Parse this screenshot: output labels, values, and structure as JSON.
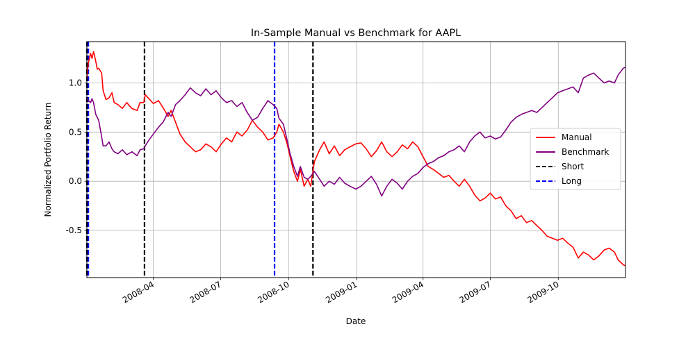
{
  "chart_data": {
    "type": "line",
    "title": "In-Sample Manual vs Benchmark for AAPL",
    "xlabel": "Date",
    "ylabel": "Normalized Portfolio Return",
    "xlim": [
      "2008-01-02",
      "2009-12-31"
    ],
    "ylim": [
      -0.98,
      1.42
    ],
    "yticks": [
      -0.5,
      0.0,
      0.5,
      1.0
    ],
    "xticks": [
      "2008-04",
      "2008-07",
      "2008-10",
      "2009-01",
      "2009-04",
      "2009-07",
      "2009-10"
    ],
    "grid": true,
    "legend_position": "center-right",
    "series": [
      {
        "name": "Manual",
        "color": "#ff0000",
        "points": [
          [
            "2008-01-02",
            1.05
          ],
          [
            "2008-01-04",
            1.2
          ],
          [
            "2008-01-07",
            1.3
          ],
          [
            "2008-01-09",
            1.25
          ],
          [
            "2008-01-11",
            1.32
          ],
          [
            "2008-01-14",
            1.22
          ],
          [
            "2008-01-16",
            1.14
          ],
          [
            "2008-01-18",
            1.15
          ],
          [
            "2008-01-22",
            1.1
          ],
          [
            "2008-01-24",
            0.92
          ],
          [
            "2008-01-28",
            0.83
          ],
          [
            "2008-02-01",
            0.85
          ],
          [
            "2008-02-05",
            0.9
          ],
          [
            "2008-02-08",
            0.8
          ],
          [
            "2008-02-13",
            0.78
          ],
          [
            "2008-02-19",
            0.74
          ],
          [
            "2008-02-25",
            0.8
          ],
          [
            "2008-03-03",
            0.74
          ],
          [
            "2008-03-10",
            0.72
          ],
          [
            "2008-03-14",
            0.8
          ],
          [
            "2008-03-19",
            0.8
          ],
          [
            "2008-03-21",
            0.88
          ],
          [
            "2008-03-26",
            0.84
          ],
          [
            "2008-04-01",
            0.79
          ],
          [
            "2008-04-08",
            0.82
          ],
          [
            "2008-04-14",
            0.75
          ],
          [
            "2008-04-21",
            0.66
          ],
          [
            "2008-04-25",
            0.72
          ],
          [
            "2008-05-01",
            0.6
          ],
          [
            "2008-05-07",
            0.48
          ],
          [
            "2008-05-14",
            0.4
          ],
          [
            "2008-05-21",
            0.35
          ],
          [
            "2008-05-28",
            0.3
          ],
          [
            "2008-06-04",
            0.32
          ],
          [
            "2008-06-11",
            0.38
          ],
          [
            "2008-06-18",
            0.35
          ],
          [
            "2008-06-25",
            0.3
          ],
          [
            "2008-07-02",
            0.38
          ],
          [
            "2008-07-09",
            0.44
          ],
          [
            "2008-07-16",
            0.4
          ],
          [
            "2008-07-23",
            0.5
          ],
          [
            "2008-07-30",
            0.46
          ],
          [
            "2008-08-06",
            0.52
          ],
          [
            "2008-08-13",
            0.62
          ],
          [
            "2008-08-20",
            0.55
          ],
          [
            "2008-08-27",
            0.5
          ],
          [
            "2008-09-03",
            0.42
          ],
          [
            "2008-09-10",
            0.44
          ],
          [
            "2008-09-15",
            0.5
          ],
          [
            "2008-09-18",
            0.58
          ],
          [
            "2008-09-24",
            0.5
          ],
          [
            "2008-09-29",
            0.38
          ],
          [
            "2008-10-03",
            0.25
          ],
          [
            "2008-10-08",
            0.1
          ],
          [
            "2008-10-13",
            0.0
          ],
          [
            "2008-10-17",
            0.12
          ],
          [
            "2008-10-22",
            -0.05
          ],
          [
            "2008-10-27",
            0.02
          ],
          [
            "2008-10-31",
            -0.05
          ],
          [
            "2008-11-05",
            0.2
          ],
          [
            "2008-11-12",
            0.32
          ],
          [
            "2008-11-18",
            0.4
          ],
          [
            "2008-11-25",
            0.28
          ],
          [
            "2008-12-02",
            0.36
          ],
          [
            "2008-12-09",
            0.26
          ],
          [
            "2008-12-16",
            0.32
          ],
          [
            "2008-12-23",
            0.35
          ],
          [
            "2008-12-31",
            0.38
          ],
          [
            "2009-01-07",
            0.39
          ],
          [
            "2009-01-14",
            0.33
          ],
          [
            "2009-01-21",
            0.25
          ],
          [
            "2009-01-28",
            0.31
          ],
          [
            "2009-02-04",
            0.4
          ],
          [
            "2009-02-11",
            0.3
          ],
          [
            "2009-02-18",
            0.25
          ],
          [
            "2009-02-25",
            0.3
          ],
          [
            "2009-03-04",
            0.37
          ],
          [
            "2009-03-11",
            0.33
          ],
          [
            "2009-03-18",
            0.4
          ],
          [
            "2009-03-25",
            0.35
          ],
          [
            "2009-04-01",
            0.25
          ],
          [
            "2009-04-08",
            0.15
          ],
          [
            "2009-04-15",
            0.12
          ],
          [
            "2009-04-22",
            0.08
          ],
          [
            "2009-04-29",
            0.04
          ],
          [
            "2009-05-06",
            0.06
          ],
          [
            "2009-05-13",
            0.0
          ],
          [
            "2009-05-20",
            -0.05
          ],
          [
            "2009-05-27",
            0.02
          ],
          [
            "2009-06-03",
            -0.05
          ],
          [
            "2009-06-10",
            -0.14
          ],
          [
            "2009-06-17",
            -0.2
          ],
          [
            "2009-06-24",
            -0.17
          ],
          [
            "2009-07-01",
            -0.12
          ],
          [
            "2009-07-08",
            -0.18
          ],
          [
            "2009-07-15",
            -0.16
          ],
          [
            "2009-07-22",
            -0.25
          ],
          [
            "2009-07-29",
            -0.3
          ],
          [
            "2009-08-05",
            -0.38
          ],
          [
            "2009-08-12",
            -0.35
          ],
          [
            "2009-08-19",
            -0.42
          ],
          [
            "2009-08-26",
            -0.4
          ],
          [
            "2009-09-02",
            -0.45
          ],
          [
            "2009-09-09",
            -0.5
          ],
          [
            "2009-09-16",
            -0.56
          ],
          [
            "2009-09-23",
            -0.58
          ],
          [
            "2009-09-30",
            -0.6
          ],
          [
            "2009-10-07",
            -0.58
          ],
          [
            "2009-10-14",
            -0.63
          ],
          [
            "2009-10-21",
            -0.67
          ],
          [
            "2009-10-28",
            -0.78
          ],
          [
            "2009-11-04",
            -0.72
          ],
          [
            "2009-11-11",
            -0.75
          ],
          [
            "2009-11-18",
            -0.8
          ],
          [
            "2009-11-25",
            -0.76
          ],
          [
            "2009-12-02",
            -0.7
          ],
          [
            "2009-12-09",
            -0.68
          ],
          [
            "2009-12-16",
            -0.72
          ],
          [
            "2009-12-21",
            -0.8
          ],
          [
            "2009-12-28",
            -0.85
          ],
          [
            "2009-12-31",
            -0.86
          ]
        ]
      },
      {
        "name": "Benchmark",
        "color": "#800080",
        "points": [
          [
            "2008-01-02",
            0.85
          ],
          [
            "2008-01-04",
            0.82
          ],
          [
            "2008-01-07",
            0.8
          ],
          [
            "2008-01-09",
            0.84
          ],
          [
            "2008-01-11",
            0.8
          ],
          [
            "2008-01-14",
            0.68
          ],
          [
            "2008-01-16",
            0.65
          ],
          [
            "2008-01-18",
            0.62
          ],
          [
            "2008-01-22",
            0.45
          ],
          [
            "2008-01-24",
            0.36
          ],
          [
            "2008-01-28",
            0.36
          ],
          [
            "2008-02-01",
            0.4
          ],
          [
            "2008-02-05",
            0.33
          ],
          [
            "2008-02-08",
            0.3
          ],
          [
            "2008-02-13",
            0.28
          ],
          [
            "2008-02-19",
            0.32
          ],
          [
            "2008-02-25",
            0.27
          ],
          [
            "2008-03-03",
            0.3
          ],
          [
            "2008-03-10",
            0.26
          ],
          [
            "2008-03-14",
            0.32
          ],
          [
            "2008-03-19",
            0.33
          ],
          [
            "2008-03-21",
            0.36
          ],
          [
            "2008-03-26",
            0.42
          ],
          [
            "2008-04-01",
            0.48
          ],
          [
            "2008-04-08",
            0.55
          ],
          [
            "2008-04-14",
            0.6
          ],
          [
            "2008-04-21",
            0.7
          ],
          [
            "2008-04-25",
            0.66
          ],
          [
            "2008-05-01",
            0.78
          ],
          [
            "2008-05-07",
            0.82
          ],
          [
            "2008-05-14",
            0.88
          ],
          [
            "2008-05-21",
            0.95
          ],
          [
            "2008-05-28",
            0.9
          ],
          [
            "2008-06-04",
            0.87
          ],
          [
            "2008-06-11",
            0.94
          ],
          [
            "2008-06-18",
            0.88
          ],
          [
            "2008-06-25",
            0.92
          ],
          [
            "2008-07-02",
            0.85
          ],
          [
            "2008-07-09",
            0.8
          ],
          [
            "2008-07-16",
            0.82
          ],
          [
            "2008-07-23",
            0.76
          ],
          [
            "2008-07-30",
            0.8
          ],
          [
            "2008-08-06",
            0.7
          ],
          [
            "2008-08-13",
            0.62
          ],
          [
            "2008-08-20",
            0.65
          ],
          [
            "2008-08-27",
            0.74
          ],
          [
            "2008-09-03",
            0.82
          ],
          [
            "2008-09-10",
            0.78
          ],
          [
            "2008-09-15",
            0.74
          ],
          [
            "2008-09-18",
            0.64
          ],
          [
            "2008-09-24",
            0.58
          ],
          [
            "2008-09-29",
            0.42
          ],
          [
            "2008-10-03",
            0.28
          ],
          [
            "2008-10-08",
            0.15
          ],
          [
            "2008-10-13",
            0.05
          ],
          [
            "2008-10-17",
            0.15
          ],
          [
            "2008-10-22",
            0.04
          ],
          [
            "2008-10-27",
            0.02
          ],
          [
            "2008-10-31",
            0.05
          ],
          [
            "2008-11-05",
            0.1
          ],
          [
            "2008-11-12",
            0.02
          ],
          [
            "2008-11-18",
            -0.05
          ],
          [
            "2008-11-25",
            0.0
          ],
          [
            "2008-12-02",
            -0.03
          ],
          [
            "2008-12-09",
            0.04
          ],
          [
            "2008-12-16",
            -0.02
          ],
          [
            "2008-12-23",
            -0.05
          ],
          [
            "2008-12-31",
            -0.08
          ],
          [
            "2009-01-07",
            -0.05
          ],
          [
            "2009-01-14",
            0.0
          ],
          [
            "2009-01-21",
            0.05
          ],
          [
            "2009-01-28",
            -0.03
          ],
          [
            "2009-02-04",
            -0.15
          ],
          [
            "2009-02-11",
            -0.05
          ],
          [
            "2009-02-18",
            0.02
          ],
          [
            "2009-02-25",
            -0.02
          ],
          [
            "2009-03-04",
            -0.08
          ],
          [
            "2009-03-11",
            0.0
          ],
          [
            "2009-03-18",
            0.05
          ],
          [
            "2009-03-25",
            0.08
          ],
          [
            "2009-04-01",
            0.14
          ],
          [
            "2009-04-08",
            0.18
          ],
          [
            "2009-04-15",
            0.2
          ],
          [
            "2009-04-22",
            0.24
          ],
          [
            "2009-04-29",
            0.26
          ],
          [
            "2009-05-06",
            0.3
          ],
          [
            "2009-05-13",
            0.32
          ],
          [
            "2009-05-20",
            0.36
          ],
          [
            "2009-05-27",
            0.3
          ],
          [
            "2009-06-03",
            0.4
          ],
          [
            "2009-06-10",
            0.46
          ],
          [
            "2009-06-17",
            0.5
          ],
          [
            "2009-06-24",
            0.44
          ],
          [
            "2009-07-01",
            0.46
          ],
          [
            "2009-07-08",
            0.43
          ],
          [
            "2009-07-15",
            0.45
          ],
          [
            "2009-07-22",
            0.52
          ],
          [
            "2009-07-29",
            0.6
          ],
          [
            "2009-08-05",
            0.65
          ],
          [
            "2009-08-12",
            0.68
          ],
          [
            "2009-08-19",
            0.7
          ],
          [
            "2009-08-26",
            0.72
          ],
          [
            "2009-09-02",
            0.7
          ],
          [
            "2009-09-09",
            0.75
          ],
          [
            "2009-09-16",
            0.8
          ],
          [
            "2009-09-23",
            0.85
          ],
          [
            "2009-09-30",
            0.9
          ],
          [
            "2009-10-07",
            0.92
          ],
          [
            "2009-10-14",
            0.94
          ],
          [
            "2009-10-21",
            0.96
          ],
          [
            "2009-10-28",
            0.9
          ],
          [
            "2009-11-04",
            1.05
          ],
          [
            "2009-11-11",
            1.08
          ],
          [
            "2009-11-18",
            1.1
          ],
          [
            "2009-11-25",
            1.05
          ],
          [
            "2009-12-02",
            1.0
          ],
          [
            "2009-12-09",
            1.02
          ],
          [
            "2009-12-16",
            1.0
          ],
          [
            "2009-12-21",
            1.08
          ],
          [
            "2009-12-28",
            1.15
          ],
          [
            "2009-12-31",
            1.16
          ]
        ]
      }
    ],
    "vlines": [
      {
        "name": "Short",
        "color": "#000000",
        "dates": [
          "2008-01-02",
          "2008-03-20",
          "2008-11-03"
        ]
      },
      {
        "name": "Long",
        "color": "#0000ff",
        "dates": [
          "2008-01-04",
          "2008-09-12"
        ]
      }
    ]
  }
}
